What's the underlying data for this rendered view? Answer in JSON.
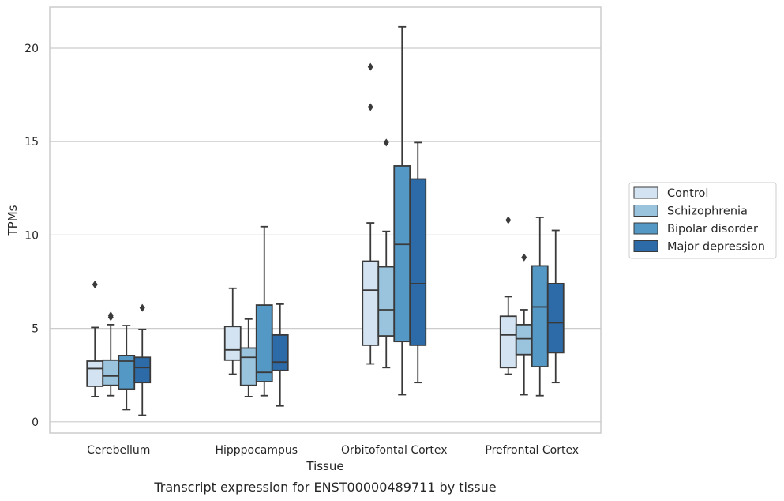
{
  "chart_data": {
    "type": "box",
    "caption": "Transcript expression for ENST00000489711 by tissue",
    "xlabel": "Tissue",
    "ylabel": "TPMs",
    "ylim": [
      -0.6,
      22.2
    ],
    "yticks": [
      0,
      5,
      10,
      15,
      20
    ],
    "grid": true,
    "legend_position": "right",
    "categories": [
      "Cerebellum",
      "Hipppocampus",
      "Orbitofontal Cortex",
      "Prefrontal Cortex"
    ],
    "series": [
      {
        "name": "Control",
        "color": "#d3e3f1",
        "boxes": [
          {
            "whislo": 1.35,
            "q1": 1.9,
            "med": 2.85,
            "q3": 3.25,
            "whishi": 5.05,
            "fliers": [
              7.35
            ]
          },
          {
            "whislo": 2.55,
            "q1": 3.3,
            "med": 3.85,
            "q3": 5.1,
            "whishi": 7.15,
            "fliers": []
          },
          {
            "whislo": 3.1,
            "q1": 4.1,
            "med": 7.05,
            "q3": 8.6,
            "whishi": 10.65,
            "fliers": [
              16.85,
              19.0
            ]
          },
          {
            "whislo": 2.55,
            "q1": 2.9,
            "med": 4.65,
            "q3": 5.65,
            "whishi": 6.7,
            "fliers": [
              10.8
            ]
          }
        ]
      },
      {
        "name": "Schizophrenia",
        "color": "#9ac4de",
        "boxes": [
          {
            "whislo": 1.4,
            "q1": 1.95,
            "med": 2.45,
            "q3": 3.3,
            "whishi": 5.2,
            "fliers": [
              5.6,
              5.7
            ]
          },
          {
            "whislo": 1.35,
            "q1": 1.95,
            "med": 3.45,
            "q3": 3.95,
            "whishi": 5.5,
            "fliers": []
          },
          {
            "whislo": 2.9,
            "q1": 4.6,
            "med": 6.0,
            "q3": 8.3,
            "whishi": 10.2,
            "fliers": [
              14.95
            ]
          },
          {
            "whislo": 1.45,
            "q1": 3.6,
            "med": 4.45,
            "q3": 5.2,
            "whishi": 6.0,
            "fliers": [
              8.8
            ]
          }
        ]
      },
      {
        "name": "Bipolar disorder",
        "color": "#5498c6",
        "boxes": [
          {
            "whislo": 0.65,
            "q1": 1.75,
            "med": 3.25,
            "q3": 3.55,
            "whishi": 5.15,
            "fliers": []
          },
          {
            "whislo": 1.4,
            "q1": 2.15,
            "med": 2.65,
            "q3": 6.25,
            "whishi": 10.45,
            "fliers": []
          },
          {
            "whislo": 1.45,
            "q1": 4.3,
            "med": 9.5,
            "q3": 13.7,
            "whishi": 21.15,
            "fliers": []
          },
          {
            "whislo": 1.4,
            "q1": 2.95,
            "med": 6.15,
            "q3": 8.35,
            "whishi": 10.95,
            "fliers": []
          }
        ]
      },
      {
        "name": "Major depression",
        "color": "#2c6ba8",
        "boxes": [
          {
            "whislo": 0.35,
            "q1": 2.1,
            "med": 2.9,
            "q3": 3.45,
            "whishi": 4.95,
            "fliers": [
              6.1
            ]
          },
          {
            "whislo": 0.85,
            "q1": 2.75,
            "med": 3.2,
            "q3": 4.65,
            "whishi": 6.3,
            "fliers": []
          },
          {
            "whislo": 2.1,
            "q1": 4.1,
            "med": 7.4,
            "q3": 13.0,
            "whishi": 14.95,
            "fliers": []
          },
          {
            "whislo": 2.1,
            "q1": 3.7,
            "med": 5.3,
            "q3": 7.4,
            "whishi": 10.25,
            "fliers": []
          }
        ]
      }
    ]
  }
}
